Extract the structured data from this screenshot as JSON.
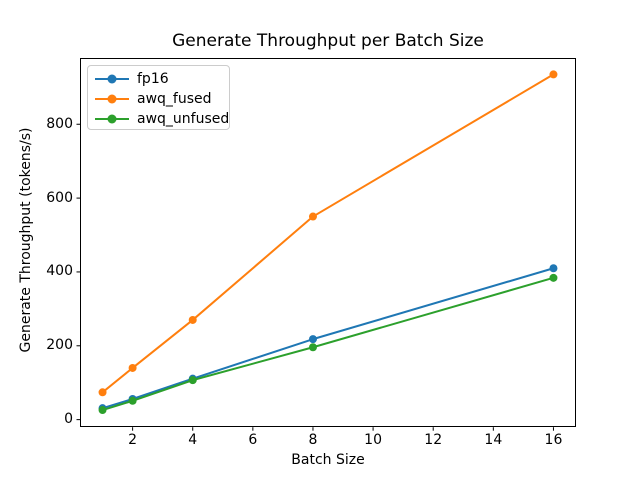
{
  "chart_data": {
    "type": "line",
    "title": "Generate Throughput per Batch Size",
    "xlabel": "Batch Size",
    "ylabel": "Generate Throughput (tokens/s)",
    "x": [
      1,
      2,
      4,
      8,
      16
    ],
    "series": [
      {
        "name": "fp16",
        "color": "#1f77b4",
        "values": [
          31,
          56,
          111,
          218,
          410
        ]
      },
      {
        "name": "awq_fused",
        "color": "#ff7f0e",
        "values": [
          74,
          140,
          270,
          550,
          935
        ]
      },
      {
        "name": "awq_unfused",
        "color": "#2ca02c",
        "values": [
          26,
          51,
          107,
          196,
          384
        ]
      }
    ],
    "xlim": [
      0.25,
      16.75
    ],
    "ylim": [
      -20.5,
      980.5
    ],
    "xticks": [
      2,
      4,
      6,
      8,
      10,
      12,
      14,
      16
    ],
    "yticks": [
      0,
      200,
      400,
      600,
      800
    ],
    "grid": false,
    "legend_position": "upper left",
    "marker": "o",
    "spine_color": "#000000"
  }
}
